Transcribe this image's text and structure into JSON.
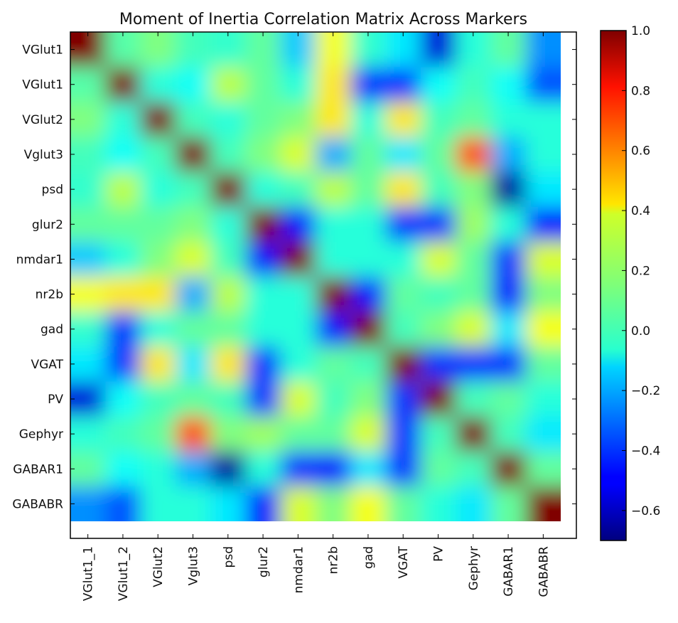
{
  "chart_data": {
    "type": "heatmap",
    "title": "Moment of Inertia Correlation Matrix Across Markers",
    "y_labels": [
      "VGlut1",
      "VGlut1",
      "VGlut2",
      "Vglut3",
      "psd",
      "glur2",
      "nmdar1",
      "nr2b",
      "gad",
      "VGAT",
      "PV",
      "Gephyr",
      "GABAR1",
      "GABABR"
    ],
    "x_labels": [
      "VGlut1_1",
      "VGlut1_2",
      "VGlut2",
      "Vglut3",
      "psd",
      "glur2",
      "nmdar1",
      "nr2b",
      "gad",
      "VGAT",
      "PV",
      "Gephyr",
      "GABAR1",
      "GABABR"
    ],
    "values": [
      [
        1.0,
        0.08,
        0.15,
        0.05,
        0.02,
        0.1,
        -0.15,
        0.35,
        0.02,
        -0.1,
        -0.55,
        0.0,
        0.1,
        -0.25
      ],
      [
        0.08,
        1.0,
        0.0,
        -0.05,
        0.25,
        0.1,
        0.0,
        0.4,
        -0.4,
        -0.4,
        -0.05,
        0.05,
        -0.05,
        -0.35
      ],
      [
        0.15,
        0.0,
        1.0,
        0.05,
        0.0,
        0.1,
        0.15,
        0.4,
        0.0,
        0.4,
        0.05,
        0.1,
        0.0,
        0.0
      ],
      [
        0.05,
        -0.05,
        0.05,
        1.0,
        0.05,
        0.15,
        0.3,
        -0.2,
        0.1,
        -0.1,
        0.1,
        0.65,
        -0.2,
        0.0
      ],
      [
        0.02,
        0.25,
        0.0,
        0.05,
        1.0,
        0.0,
        0.05,
        0.25,
        0.1,
        0.4,
        0.05,
        0.15,
        -0.65,
        -0.1
      ],
      [
        0.1,
        0.1,
        0.1,
        0.15,
        0.0,
        1.0,
        -0.45,
        0.0,
        0.0,
        -0.4,
        -0.4,
        0.2,
        0.0,
        -0.45
      ],
      [
        -0.15,
        0.0,
        0.15,
        0.3,
        0.05,
        -0.45,
        1.0,
        0.0,
        0.0,
        0.0,
        0.3,
        0.1,
        -0.4,
        0.3
      ],
      [
        0.35,
        0.4,
        0.4,
        -0.2,
        0.25,
        0.0,
        0.0,
        1.0,
        -0.45,
        0.1,
        0.05,
        0.1,
        -0.45,
        0.15
      ],
      [
        0.02,
        -0.4,
        0.0,
        0.1,
        0.1,
        0.0,
        0.0,
        -0.45,
        1.0,
        0.05,
        0.15,
        0.3,
        -0.1,
        0.35
      ],
      [
        -0.1,
        -0.4,
        0.4,
        -0.1,
        0.4,
        -0.4,
        0.0,
        0.1,
        0.05,
        1.0,
        -0.4,
        -0.4,
        -0.4,
        0.1
      ],
      [
        -0.55,
        -0.05,
        0.05,
        0.1,
        0.05,
        -0.4,
        0.3,
        0.05,
        0.15,
        -0.4,
        1.0,
        0.05,
        0.1,
        0.0
      ],
      [
        0.0,
        0.05,
        0.1,
        0.65,
        0.15,
        0.2,
        0.1,
        0.1,
        0.3,
        -0.4,
        0.05,
        1.0,
        0.05,
        -0.1
      ],
      [
        0.1,
        -0.05,
        0.0,
        -0.2,
        -0.65,
        0.0,
        -0.4,
        -0.45,
        -0.1,
        -0.4,
        0.1,
        0.05,
        1.0,
        0.1
      ],
      [
        -0.25,
        -0.35,
        0.0,
        0.0,
        -0.1,
        -0.45,
        0.3,
        0.15,
        0.35,
        0.1,
        0.0,
        -0.1,
        0.1,
        1.0
      ]
    ],
    "colorbar": {
      "min": -0.7,
      "max": 1.0,
      "ticks": [
        1.0,
        0.8,
        0.6,
        0.4,
        0.2,
        0.0,
        -0.2,
        -0.4,
        -0.6
      ],
      "tick_labels": [
        "1.0",
        "0.8",
        "0.6",
        "0.4",
        "0.2",
        "0.0",
        "−0.2",
        "−0.4",
        "−0.6"
      ],
      "colormap": "jet"
    }
  }
}
